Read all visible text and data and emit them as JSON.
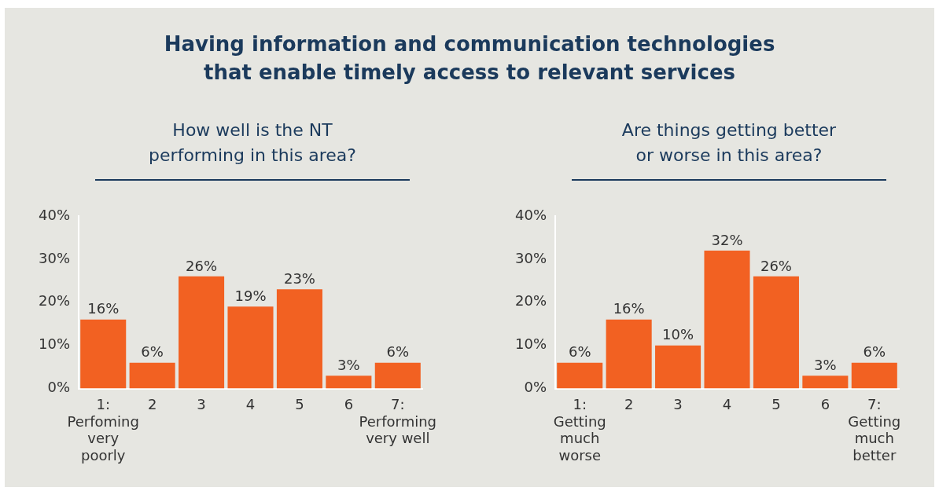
{
  "chart_data": [
    {
      "type": "bar",
      "title": "Having information and communication technologies\nthat enable timely access to relevant services",
      "subtitle": "How well is the NT\nperforming in this area?",
      "categories": [
        "1:\nPerfoming\nvery\npoorly",
        "2",
        "3",
        "4",
        "5",
        "6",
        "7:\nPerforming\nvery well"
      ],
      "values": [
        16,
        6,
        26,
        19,
        23,
        3,
        6
      ],
      "value_labels": [
        "16%",
        "6%",
        "26%",
        "19%",
        "23%",
        "3%",
        "6%"
      ],
      "color": "#f26122",
      "ylim": [
        0,
        40
      ],
      "yticks": [
        {
          "value": 0,
          "label": "0%"
        },
        {
          "value": 10,
          "label": "10%"
        },
        {
          "value": 20,
          "label": "20%"
        },
        {
          "value": 30,
          "label": "30%"
        },
        {
          "value": 40,
          "label": "40%"
        }
      ],
      "grid": false,
      "legend": false
    },
    {
      "type": "bar",
      "subtitle": "Are things getting better\nor worse in this area?",
      "categories": [
        "1:\nGetting\nmuch\nworse",
        "2",
        "3",
        "4",
        "5",
        "6",
        "7:\nGetting\nmuch\nbetter"
      ],
      "values": [
        6,
        16,
        10,
        32,
        26,
        3,
        6
      ],
      "value_labels": [
        "6%",
        "16%",
        "10%",
        "32%",
        "26%",
        "3%",
        "6%"
      ],
      "color": "#f26122",
      "ylim": [
        0,
        40
      ],
      "yticks": [
        {
          "value": 0,
          "label": "0%"
        },
        {
          "value": 10,
          "label": "10%"
        },
        {
          "value": 20,
          "label": "20%"
        },
        {
          "value": 30,
          "label": "30%"
        },
        {
          "value": 40,
          "label": "40%"
        }
      ],
      "grid": false,
      "legend": false
    }
  ]
}
